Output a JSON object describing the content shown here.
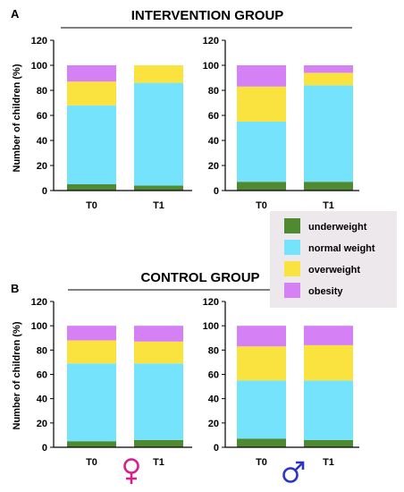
{
  "panels": {
    "A": {
      "letter": "A",
      "title": "INTERVENTION GROUP"
    },
    "B": {
      "letter": "B",
      "title": "CONTROL  GROUP"
    }
  },
  "legend": [
    {
      "label": "underweight",
      "color": "#4f8a33"
    },
    {
      "label": "normal weight",
      "color": "#74e3fb"
    },
    {
      "label": "overweight",
      "color": "#fbe33f"
    },
    {
      "label": "obesity",
      "color": "#d680f5"
    }
  ],
  "sex_symbols": {
    "female": {
      "glyph": "♀",
      "color": "#d4208f",
      "icon": "female-symbol-icon"
    },
    "male": {
      "glyph": "♂",
      "color": "#2b34c9",
      "icon": "male-symbol-icon"
    }
  },
  "chart_data": [
    {
      "type": "bar",
      "stacked": true,
      "panel": "A",
      "position": "left",
      "categories": [
        "T0",
        "T1"
      ],
      "ylabel": "Number of children (%)",
      "ylim": [
        0,
        120
      ],
      "yticks": [
        0,
        20,
        40,
        60,
        80,
        100,
        120
      ],
      "series": [
        {
          "name": "underweight",
          "values": [
            5,
            4
          ]
        },
        {
          "name": "normal weight",
          "values": [
            63,
            82
          ]
        },
        {
          "name": "overweight",
          "values": [
            19,
            14
          ]
        },
        {
          "name": "obesity",
          "values": [
            13,
            0
          ]
        }
      ]
    },
    {
      "type": "bar",
      "stacked": true,
      "panel": "A",
      "position": "right",
      "categories": [
        "T0",
        "T1"
      ],
      "ylim": [
        0,
        120
      ],
      "yticks": [
        0,
        20,
        40,
        60,
        80,
        100,
        120
      ],
      "series": [
        {
          "name": "underweight",
          "values": [
            7,
            7
          ]
        },
        {
          "name": "normal weight",
          "values": [
            48,
            77
          ]
        },
        {
          "name": "overweight",
          "values": [
            28,
            10
          ]
        },
        {
          "name": "obesity",
          "values": [
            17,
            6
          ]
        }
      ]
    },
    {
      "type": "bar",
      "stacked": true,
      "panel": "B",
      "position": "left",
      "categories": [
        "T0",
        "T1"
      ],
      "ylabel": "Number of children (%)",
      "ylim": [
        0,
        120
      ],
      "yticks": [
        0,
        20,
        40,
        60,
        80,
        100,
        120
      ],
      "series": [
        {
          "name": "underweight",
          "values": [
            5,
            6
          ]
        },
        {
          "name": "normal weight",
          "values": [
            64,
            63
          ]
        },
        {
          "name": "overweight",
          "values": [
            19,
            18
          ]
        },
        {
          "name": "obesity",
          "values": [
            12,
            13
          ]
        }
      ]
    },
    {
      "type": "bar",
      "stacked": true,
      "panel": "B",
      "position": "right",
      "categories": [
        "T0",
        "T1"
      ],
      "ylim": [
        0,
        120
      ],
      "yticks": [
        0,
        20,
        40,
        60,
        80,
        100,
        120
      ],
      "series": [
        {
          "name": "underweight",
          "values": [
            7,
            6
          ]
        },
        {
          "name": "normal weight",
          "values": [
            48,
            49
          ]
        },
        {
          "name": "overweight",
          "values": [
            28,
            29
          ]
        },
        {
          "name": "obesity",
          "values": [
            17,
            16
          ]
        }
      ]
    }
  ]
}
